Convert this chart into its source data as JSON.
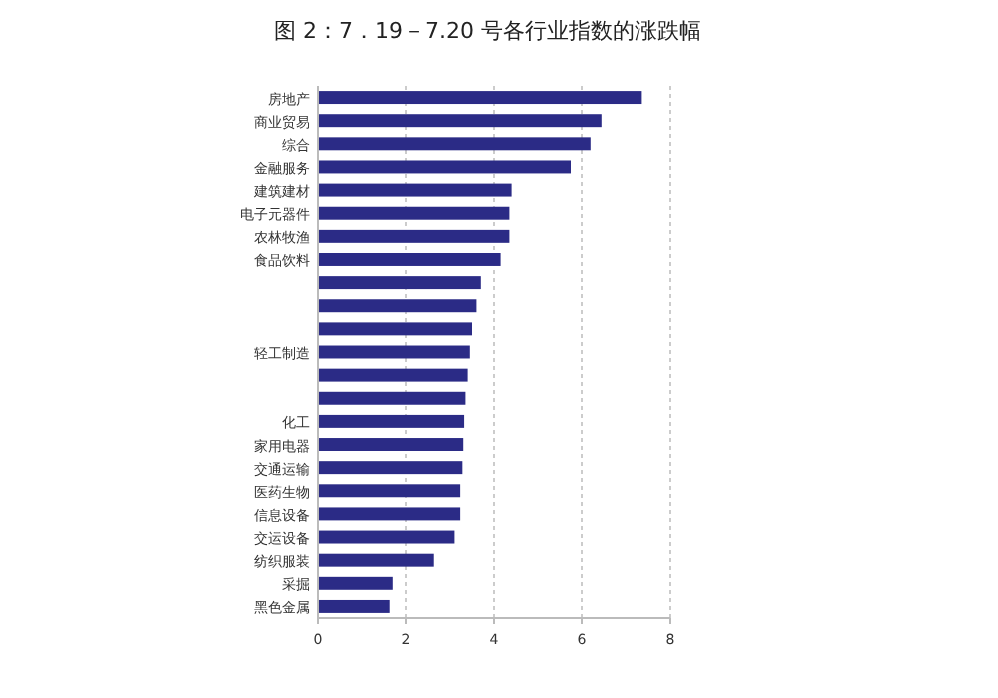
{
  "chart_data": {
    "type": "bar",
    "orientation": "horizontal",
    "title": "图 2：7．19－7.20 号各行业指数的涨跌幅",
    "categories": [
      "房地产",
      "商业贸易",
      "综合",
      "金融服务",
      "建筑建材",
      "电子元器件",
      "农林牧渔",
      "食品饮料",
      null,
      null,
      null,
      "轻工制造",
      null,
      null,
      "化工",
      "家用电器",
      "交通运输",
      "医药生物",
      "信息设备",
      "交运设备",
      "纺织服装",
      "采掘",
      "黑色金属"
    ],
    "values": [
      7.35,
      6.45,
      6.2,
      5.75,
      4.4,
      4.35,
      4.35,
      4.15,
      3.7,
      3.6,
      3.5,
      3.45,
      3.4,
      3.35,
      3.32,
      3.3,
      3.28,
      3.23,
      3.23,
      3.1,
      2.63,
      1.7,
      1.63
    ],
    "color": "#2b2b86",
    "xlim": [
      0,
      8
    ],
    "xticks": [
      0,
      2,
      4,
      6,
      8
    ],
    "grid": "x"
  }
}
